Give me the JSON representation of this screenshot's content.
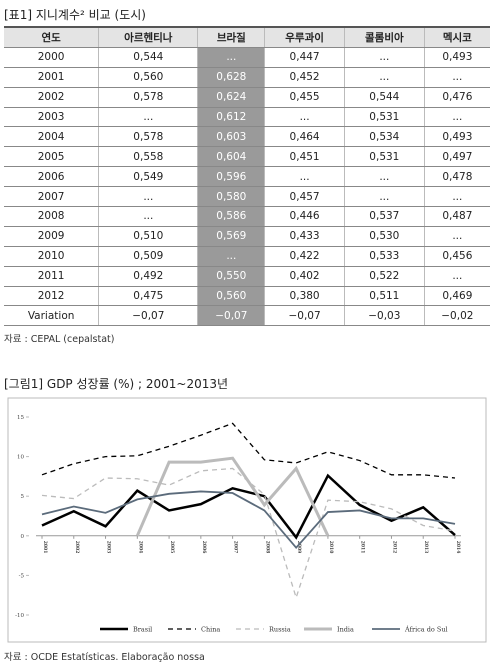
{
  "table": {
    "title": "[표1] 지니계수² 비교 (도시)",
    "header": [
      "연도",
      "아르헨티나",
      "브라질",
      "우루과이",
      "콜롬비아",
      "멕시코"
    ],
    "rows": [
      [
        "2000",
        "0,544",
        "...",
        "0,447",
        "...",
        "0,493"
      ],
      [
        "2001",
        "0,560",
        "0,628",
        "0,452",
        "...",
        "..."
      ],
      [
        "2002",
        "0,578",
        "0,624",
        "0,455",
        "0,544",
        "0,476"
      ],
      [
        "2003",
        "...",
        "0,612",
        "...",
        "0,531",
        "..."
      ],
      [
        "2004",
        "0,578",
        "0,603",
        "0,464",
        "0,534",
        "0,493"
      ],
      [
        "2005",
        "0,558",
        "0,604",
        "0,451",
        "0,531",
        "0,497"
      ],
      [
        "2006",
        "0,549",
        "0,596",
        "...",
        "...",
        "0,478"
      ],
      [
        "2007",
        "...",
        "0,580",
        "0,457",
        "...",
        "..."
      ],
      [
        "2008",
        "...",
        "0,586",
        "0,446",
        "0,537",
        "0,487"
      ],
      [
        "2009",
        "0,510",
        "0,569",
        "0,433",
        "0,530",
        "..."
      ],
      [
        "2010",
        "0,509",
        "...",
        "0,422",
        "0,533",
        "0,456"
      ],
      [
        "2011",
        "0,492",
        "0,550",
        "0,402",
        "0,522",
        "..."
      ],
      [
        "2012",
        "0,475",
        "0,560",
        "0,380",
        "0,511",
        "0,469"
      ],
      [
        "Variation",
        "−0,07",
        "−0,07",
        "−0,07",
        "−0,03",
        "−0,02"
      ]
    ],
    "highlight_column": 2,
    "highlight_color": "#9a9a9a",
    "source": "자료 : CEPAL (cepalstat)"
  },
  "chart_data": {
    "type": "line",
    "title": "[그림1] GDP 성장률 (%) ; 2001~2013년",
    "x": [
      2001,
      2002,
      2003,
      2004,
      2005,
      2006,
      2007,
      2008,
      2009,
      2010,
      2011,
      2012,
      2013,
      2014
    ],
    "xlim": [
      2001,
      2014
    ],
    "xticks": [
      2001,
      2002,
      2003,
      2004,
      2005,
      2006,
      2007,
      2008,
      2009,
      2010,
      2011,
      2012,
      2013,
      2014
    ],
    "ylim": [
      -10,
      15
    ],
    "yticks": [
      -10,
      -5,
      0,
      5,
      10,
      15
    ],
    "grid": false,
    "legend": "bottom",
    "series": [
      {
        "name": "Brasil",
        "color": "#000000",
        "dashed": false,
        "width": 2.5,
        "values": [
          1.3,
          3.1,
          1.2,
          5.7,
          3.2,
          4.0,
          6.0,
          5.0,
          -0.2,
          7.6,
          3.9,
          1.9,
          3.6,
          0.1
        ]
      },
      {
        "name": "China",
        "color": "#000000",
        "dashed": true,
        "width": 1.3,
        "values": [
          7.7,
          9.1,
          10.0,
          10.1,
          11.3,
          12.7,
          14.2,
          9.6,
          9.2,
          10.6,
          9.5,
          7.7,
          7.7,
          7.3
        ]
      },
      {
        "name": "Russia",
        "color": "#bbbbbb",
        "dashed": true,
        "width": 1.3,
        "values": [
          5.1,
          4.7,
          7.3,
          7.2,
          6.4,
          8.2,
          8.5,
          5.2,
          -7.8,
          4.5,
          4.3,
          3.4,
          1.3,
          0.6
        ]
      },
      {
        "name": "India",
        "color": "#bbbbbb",
        "dashed": false,
        "width": 3,
        "values": [
          null,
          null,
          null,
          0,
          9.3,
          9.3,
          9.8,
          3.9,
          8.5,
          0,
          null,
          null,
          null,
          null
        ]
      },
      {
        "name": "África do Sul",
        "color": "#5b6b7b",
        "dashed": false,
        "width": 1.8,
        "values": [
          2.7,
          3.7,
          2.9,
          4.6,
          5.3,
          5.6,
          5.4,
          3.2,
          -1.5,
          3.0,
          3.2,
          2.2,
          2.2,
          1.5
        ]
      }
    ],
    "source": "자료 : OCDE Estatísticas. Elaboração nossa"
  }
}
